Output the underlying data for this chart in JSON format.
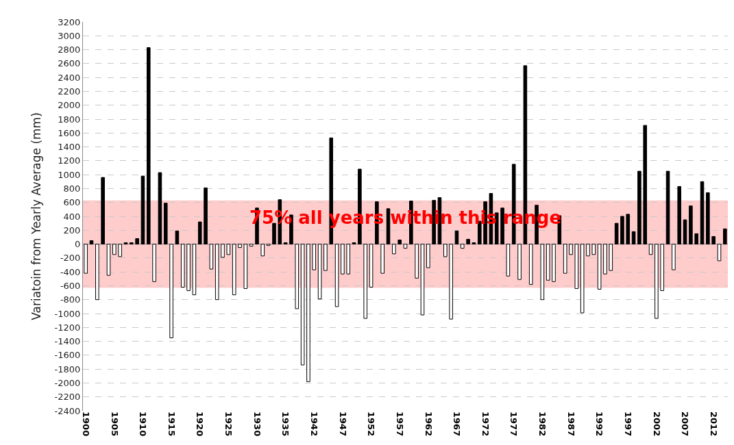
{
  "chart_data": {
    "type": "bar",
    "ylabel": "Variatoin from Yearly Average (mm)",
    "categories": [
      "1900",
      null,
      null,
      null,
      null,
      "1905",
      null,
      null,
      null,
      null,
      "1910",
      null,
      null,
      null,
      null,
      "1915",
      null,
      null,
      null,
      null,
      "1920",
      null,
      null,
      null,
      null,
      "1925",
      null,
      null,
      null,
      null,
      "1930",
      null,
      null,
      null,
      null,
      "1935",
      null,
      null,
      null,
      null,
      "1942",
      null,
      null,
      null,
      null,
      "1947",
      null,
      null,
      null,
      null,
      "1952",
      null,
      null,
      null,
      null,
      "1957",
      null,
      null,
      null,
      null,
      "1962",
      null,
      null,
      null,
      null,
      "1967",
      null,
      null,
      null,
      null,
      "1972",
      null,
      null,
      null,
      null,
      "1977",
      null,
      null,
      null,
      null,
      "1982",
      null,
      null,
      null,
      null,
      "1987",
      null,
      null,
      null,
      null,
      "1992",
      null,
      null,
      null,
      null,
      "1997",
      null,
      null,
      null,
      null,
      "2002",
      null,
      null,
      null,
      null,
      "2007",
      null,
      null,
      null,
      null,
      "2012",
      null,
      null
    ],
    "values": [
      -420,
      50,
      -800,
      960,
      -450,
      -150,
      -180,
      20,
      20,
      80,
      980,
      2830,
      -540,
      1030,
      590,
      -1350,
      190,
      -620,
      -670,
      -730,
      320,
      810,
      -360,
      -800,
      -190,
      -150,
      -730,
      -50,
      -640,
      -30,
      520,
      -170,
      -20,
      300,
      640,
      20,
      420,
      -930,
      -1740,
      -1980,
      -370,
      -790,
      -380,
      1530,
      -900,
      -430,
      -430,
      20,
      1080,
      -1070,
      -620,
      610,
      -420,
      510,
      -140,
      60,
      -60,
      620,
      -490,
      -1020,
      -340,
      630,
      670,
      -180,
      -1080,
      190,
      -60,
      70,
      20,
      330,
      610,
      730,
      450,
      520,
      -460,
      1150,
      -510,
      2570,
      -580,
      560,
      -800,
      -520,
      -540,
      410,
      -420,
      -150,
      -640,
      -990,
      -170,
      -150,
      -650,
      -430,
      -380,
      300,
      400,
      430,
      180,
      1050,
      1710,
      -150,
      -1070,
      -670,
      1050,
      -370,
      830,
      350,
      550,
      150,
      900,
      740,
      110,
      -240,
      220
    ],
    "colors": [
      "#ffffff",
      "#000000",
      "#ffffff",
      "#000000",
      "#ffffff",
      "#ffffff",
      "#ffffff",
      "#000000",
      "#000000",
      "#000000",
      "#000000",
      "#000000",
      "#ffffff",
      "#000000",
      "#000000",
      "#ffffff",
      "#000000",
      "#ffffff",
      "#ffffff",
      "#ffffff",
      "#000000",
      "#000000",
      "#ffffff",
      "#ffffff",
      "#ffffff",
      "#ffffff",
      "#ffffff",
      "#ffffff",
      "#ffffff",
      "#ffffff",
      "#000000",
      "#ffffff",
      "#ffffff",
      "#000000",
      "#000000",
      "#000000",
      "#000000",
      "#ffffff",
      "#ffffff",
      "#ffffff",
      "#ffffff",
      "#ffffff",
      "#ffffff",
      "#000000",
      "#ffffff",
      "#ffffff",
      "#ffffff",
      "#000000",
      "#000000",
      "#ffffff",
      "#ffffff",
      "#000000",
      "#ffffff",
      "#000000",
      "#ffffff",
      "#000000",
      "#ffffff",
      "#000000",
      "#ffffff",
      "#ffffff",
      "#ffffff",
      "#000000",
      "#000000",
      "#ffffff",
      "#ffffff",
      "#000000",
      "#ffffff",
      "#000000",
      "#000000",
      "#000000",
      "#000000",
      "#000000",
      "#000000",
      "#000000",
      "#ffffff",
      "#000000",
      "#ffffff",
      "#000000",
      "#ffffff",
      "#000000",
      "#ffffff",
      "#ffffff",
      "#ffffff",
      "#000000",
      "#ffffff",
      "#ffffff",
      "#ffffff",
      "#ffffff",
      "#ffffff",
      "#ffffff",
      "#ffffff",
      "#ffffff",
      "#ffffff",
      "#000000",
      "#000000",
      "#000000",
      "#000000",
      "#000000",
      "#000000",
      "#ffffff",
      "#ffffff",
      "#ffffff",
      "#000000",
      "#ffffff",
      "#000000",
      "#000000",
      "#000000",
      "#000000",
      "#000000",
      "#000000",
      "#000000",
      "#ffffff",
      "#000000"
    ],
    "ylim": [
      -2400,
      3200
    ],
    "yticks": [
      -2400,
      -2200,
      -2000,
      -1800,
      -1600,
      -1400,
      -1200,
      -1000,
      -800,
      -600,
      -400,
      -200,
      0,
      200,
      400,
      600,
      800,
      1000,
      1200,
      1400,
      1600,
      1800,
      2000,
      2200,
      2400,
      2600,
      2800,
      3000,
      3200
    ],
    "bands": [
      {
        "axis": "y",
        "from": -630,
        "to": 630,
        "label": "75% all years within this range",
        "color": "#ffcccc"
      }
    ],
    "grid": "y"
  }
}
